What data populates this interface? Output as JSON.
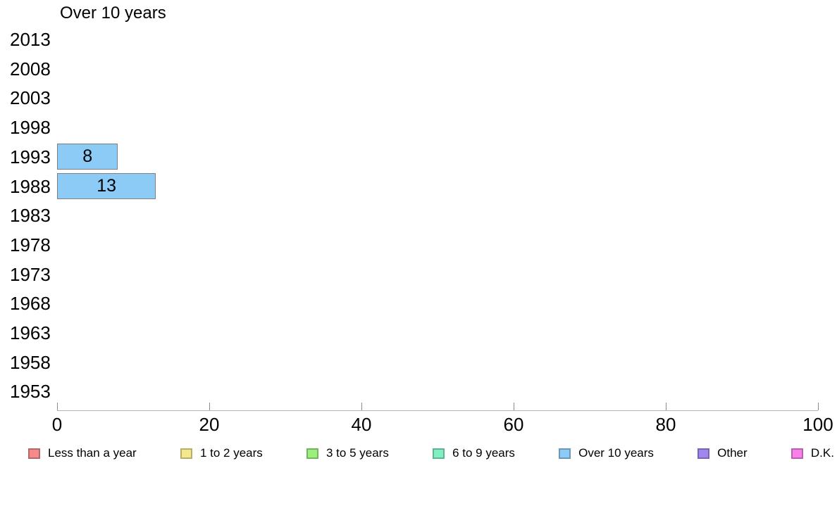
{
  "page": {
    "background": "#ffffff"
  },
  "chart_data": {
    "type": "bar",
    "orientation": "horizontal",
    "title": "Over 10 years",
    "categories": [
      "2013",
      "2008",
      "2003",
      "1998",
      "1993",
      "1988",
      "1983",
      "1978",
      "1973",
      "1968",
      "1963",
      "1958",
      "1953"
    ],
    "series": [
      {
        "name": "Over 10 years",
        "color": "#8dcbf7",
        "values": [
          null,
          null,
          null,
          null,
          8,
          13,
          null,
          null,
          null,
          null,
          null,
          null,
          null
        ]
      }
    ],
    "bar_value_labels": [
      "8",
      "13"
    ],
    "xlabel": "",
    "ylabel": "",
    "xlim": [
      0,
      100
    ],
    "xticks": [
      0,
      20,
      40,
      60,
      80,
      100
    ],
    "grid": false,
    "legend_position": "bottom"
  },
  "legend": {
    "items": [
      {
        "label": "Less than a year",
        "color": "#f48a8a"
      },
      {
        "label": "1 to 2 years",
        "color": "#f5e88c"
      },
      {
        "label": "3 to 5 years",
        "color": "#9bf07d"
      },
      {
        "label": "6 to 9 years",
        "color": "#80f0c2"
      },
      {
        "label": "Over 10 years",
        "color": "#8dcbf7"
      },
      {
        "label": "Other",
        "color": "#a186f0"
      },
      {
        "label": "D.K.",
        "color": "#f881e9"
      }
    ]
  }
}
